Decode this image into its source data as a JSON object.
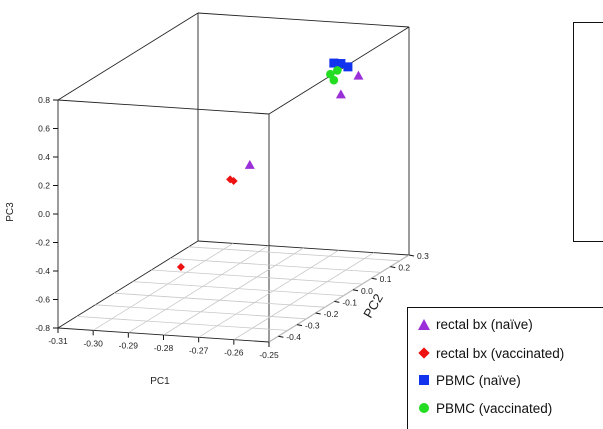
{
  "chart_data": {
    "type": "scatter",
    "projection": "3d",
    "xlabel": "PC1",
    "ylabel": "PC2",
    "zlabel": "PC3",
    "xlim": [
      -0.31,
      -0.25
    ],
    "ylim": [
      -0.45,
      0.3
    ],
    "zlim": [
      -0.8,
      0.8
    ],
    "x_ticks": [
      "-0.31",
      "-0.30",
      "-0.29",
      "-0.28",
      "-0.27",
      "-0.26",
      "-0.25"
    ],
    "y_ticks": [
      "-0.4",
      "-0.3",
      "-0.2",
      "-0.1",
      "0.0",
      "0.1",
      "0.2",
      "0.3"
    ],
    "z_ticks": [
      "-0.8",
      "-0.6",
      "-0.4",
      "-0.2",
      "0.0",
      "0.2",
      "0.4",
      "0.6",
      "0.8"
    ],
    "box": true,
    "grid_floor": true,
    "legend_position": "bottom-right",
    "series": [
      {
        "name": "rectal bx (naïve)",
        "marker": "triangle",
        "color": "#9b30d9",
        "points": [
          {
            "x": -0.258,
            "y": 0.18,
            "z": 0.54
          },
          {
            "x": -0.263,
            "y": 0.18,
            "z": 0.4
          },
          {
            "x": -0.282,
            "y": 0.05,
            "z": -0.02
          }
        ]
      },
      {
        "name": "rectal bx (vaccinated)",
        "marker": "diamond",
        "color": "#ee1111",
        "points": [
          {
            "x": -0.286,
            "y": 0.02,
            "z": -0.1
          },
          {
            "x": -0.285,
            "y": 0.02,
            "z": -0.11
          },
          {
            "x": -0.283,
            "y": -0.3,
            "z": -0.45
          }
        ]
      },
      {
        "name": "PBMC (naïve)",
        "marker": "square",
        "color": "#1133ee",
        "points": [
          {
            "x": -0.265,
            "y": 0.18,
            "z": 0.62
          },
          {
            "x": -0.263,
            "y": 0.18,
            "z": 0.62
          },
          {
            "x": -0.261,
            "y": 0.18,
            "z": 0.6
          }
        ]
      },
      {
        "name": "PBMC (vaccinated)",
        "marker": "circle",
        "color": "#22dd22",
        "points": [
          {
            "x": -0.266,
            "y": 0.18,
            "z": 0.54
          },
          {
            "x": -0.265,
            "y": 0.18,
            "z": 0.5
          },
          {
            "x": -0.264,
            "y": 0.18,
            "z": 0.57
          }
        ]
      }
    ]
  }
}
